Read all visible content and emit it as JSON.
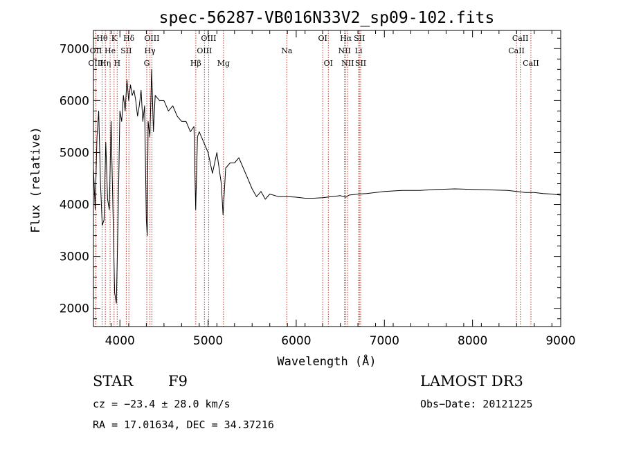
{
  "chart_data": {
    "type": "line",
    "title": "spec-56287-VB016N33V2_sp09-102.fits",
    "xlabel": "Wavelength (Å)",
    "ylabel": "Flux (relative)",
    "xlim": [
      3700,
      9000
    ],
    "ylim": [
      1650,
      7350
    ],
    "x_ticks": [
      4000,
      5000,
      6000,
      7000,
      8000,
      9000
    ],
    "y_ticks": [
      2000,
      3000,
      4000,
      5000,
      6000,
      7000
    ],
    "grid": false,
    "spectral_lines": [
      {
        "label": "Hθ",
        "wavelength": 3798,
        "row": 0
      },
      {
        "label": "OII",
        "wavelength": 3727,
        "row": 1
      },
      {
        "label": "OIII",
        "wavelength": 3727,
        "row": 2
      },
      {
        "label": "Hη",
        "wavelength": 3835,
        "row": 2
      },
      {
        "label": "K",
        "wavelength": 3934,
        "row": 0
      },
      {
        "label": "He",
        "wavelength": 3889,
        "row": 1
      },
      {
        "label": "H",
        "wavelength": 3969,
        "row": 2
      },
      {
        "label": "SII",
        "wavelength": 4072,
        "row": 1
      },
      {
        "label": "Hδ",
        "wavelength": 4102,
        "row": 0
      },
      {
        "label": "OIII",
        "wavelength": 4363,
        "row": 0
      },
      {
        "label": "Hγ",
        "wavelength": 4341,
        "row": 1
      },
      {
        "label": "G",
        "wavelength": 4305,
        "row": 2
      },
      {
        "label": "OIII",
        "wavelength": 5007,
        "row": 0
      },
      {
        "label": "OIII",
        "wavelength": 4959,
        "row": 1
      },
      {
        "label": "Hβ",
        "wavelength": 4861,
        "row": 2
      },
      {
        "label": "Mg",
        "wavelength": 5175,
        "row": 2
      },
      {
        "label": "Na",
        "wavelength": 5893,
        "row": 1
      },
      {
        "label": "OI",
        "wavelength": 6300,
        "row": 0
      },
      {
        "label": "OI",
        "wavelength": 6364,
        "row": 2
      },
      {
        "label": "Hα",
        "wavelength": 6563,
        "row": 0
      },
      {
        "label": "NII",
        "wavelength": 6548,
        "row": 1
      },
      {
        "label": "NII",
        "wavelength": 6584,
        "row": 2
      },
      {
        "label": "SII",
        "wavelength": 6717,
        "row": 0
      },
      {
        "label": "Li",
        "wavelength": 6708,
        "row": 1
      },
      {
        "label": "SII",
        "wavelength": 6731,
        "row": 2
      },
      {
        "label": "CaII",
        "wavelength": 8542,
        "row": 0
      },
      {
        "label": "CaII",
        "wavelength": 8498,
        "row": 1
      },
      {
        "label": "CaII",
        "wavelength": 8662,
        "row": 2
      }
    ],
    "series": [
      {
        "name": "flux",
        "x": [
          3700,
          3720,
          3740,
          3760,
          3780,
          3800,
          3820,
          3840,
          3860,
          3880,
          3900,
          3920,
          3940,
          3960,
          3980,
          4000,
          4020,
          4040,
          4060,
          4080,
          4100,
          4120,
          4140,
          4160,
          4180,
          4200,
          4220,
          4240,
          4260,
          4280,
          4300,
          4310,
          4320,
          4340,
          4360,
          4380,
          4400,
          4450,
          4500,
          4550,
          4600,
          4650,
          4700,
          4750,
          4800,
          4840,
          4860,
          4880,
          4900,
          4950,
          5000,
          5050,
          5100,
          5150,
          5170,
          5200,
          5250,
          5300,
          5350,
          5400,
          5450,
          5500,
          5550,
          5600,
          5650,
          5700,
          5800,
          5900,
          6000,
          6100,
          6200,
          6300,
          6400,
          6500,
          6563,
          6600,
          6700,
          6800,
          6900,
          7000,
          7200,
          7400,
          7600,
          7800,
          8000,
          8200,
          8400,
          8500,
          8600,
          8700,
          8800,
          8900,
          9000
        ],
        "y": [
          4700,
          3900,
          5300,
          5800,
          4400,
          3600,
          3700,
          5200,
          4100,
          3900,
          5600,
          4000,
          2300,
          2100,
          3800,
          5800,
          5600,
          6100,
          5800,
          6400,
          6000,
          6300,
          6100,
          6200,
          6000,
          5700,
          5900,
          6200,
          5600,
          5900,
          3700,
          3400,
          5600,
          5300,
          6600,
          5400,
          6100,
          6000,
          6000,
          5800,
          5900,
          5700,
          5600,
          5600,
          5400,
          5500,
          3900,
          5300,
          5400,
          5200,
          5000,
          4600,
          5000,
          4400,
          3800,
          4700,
          4800,
          4800,
          4900,
          4700,
          4500,
          4300,
          4150,
          4250,
          4100,
          4200,
          4150,
          4150,
          4140,
          4120,
          4120,
          4130,
          4150,
          4170,
          4140,
          4180,
          4200,
          4210,
          4230,
          4250,
          4270,
          4270,
          4290,
          4300,
          4290,
          4280,
          4270,
          4250,
          4230,
          4230,
          4210,
          4200,
          4180
        ]
      }
    ]
  },
  "info": {
    "object_type": "STAR",
    "subclass": "F9",
    "survey": "LAMOST DR3",
    "cz": "cz = −23.4 ± 28.0 km/s",
    "obs_date": "Obs−Date: 20121225",
    "coords": "RA =  17.01634, DEC =  34.37216"
  },
  "colors": {
    "spectrum": "#000000",
    "line_markers": "#c0392b",
    "background": "#ffffff"
  }
}
